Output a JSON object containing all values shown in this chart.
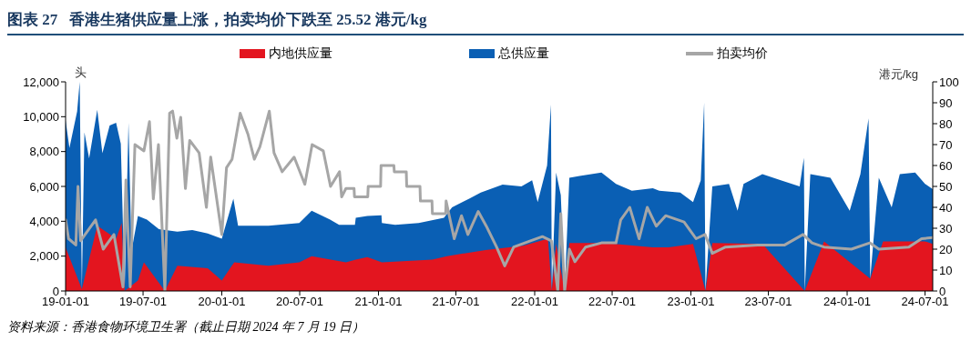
{
  "chart_data": {
    "type": "area",
    "title": "图表 27   香港生猪供应量上涨，拍卖均价下跌至 25.52 港元/kg",
    "ylabel": "头",
    "y2label": "港元/kg",
    "annotations": [
      "资料来源：香港食物环境卫生署（截止日期 2024 年 7 月 19 日）"
    ],
    "legend": "top",
    "xlim": [
      "2019-01-01",
      "2024-07-19"
    ],
    "xticks": [
      {
        "value": "2019-01-01",
        "label": "19-01-01"
      },
      {
        "value": "2019-07-01",
        "label": "19-07-01"
      },
      {
        "value": "2020-01-01",
        "label": "20-01-01"
      },
      {
        "value": "2020-07-01",
        "label": "20-07-01"
      },
      {
        "value": "2021-01-01",
        "label": "21-01-01"
      },
      {
        "value": "2021-07-01",
        "label": "21-07-01"
      },
      {
        "value": "2022-01-01",
        "label": "22-01-01"
      },
      {
        "value": "2022-07-01",
        "label": "22-07-01"
      },
      {
        "value": "2023-01-01",
        "label": "23-01-01"
      },
      {
        "value": "2023-07-01",
        "label": "23-07-01"
      },
      {
        "value": "2024-01-01",
        "label": "24-01-01"
      },
      {
        "value": "2024-07-01",
        "label": "24-07-01"
      }
    ],
    "ylim": [
      0,
      12000
    ],
    "yticks": [
      0,
      {
        "value": 2000,
        "label": "2,000"
      },
      {
        "value": 4000,
        "label": "4,000"
      },
      {
        "value": 6000,
        "label": "6,000"
      },
      {
        "value": 8000,
        "label": "8,000"
      },
      {
        "value": 10000,
        "label": "10,000"
      },
      {
        "value": 12000,
        "label": "12,000"
      }
    ],
    "y2lim": [
      0,
      100
    ],
    "y2ticks": [
      0,
      10,
      20,
      30,
      40,
      50,
      60,
      70,
      80,
      90,
      100
    ],
    "series": [
      {
        "name": "内地供应量",
        "color": "#e3151f",
        "x": [
          "2019-01-01",
          "2019-02-08",
          "2019-03-16",
          "2019-04-29",
          "2019-05-12",
          "2019-05-19",
          "2019-06-19",
          "2019-07-03",
          "2019-08-21",
          "2019-09-19",
          "2019-11-29",
          "2020-01-01",
          "2020-01-30",
          "2020-04-19",
          "2020-06-30",
          "2020-07-29",
          "2020-10-17",
          "2020-11-09",
          "2020-12-06",
          "2021-01-09",
          "2021-05-07",
          "2021-06-10",
          "2021-09-08",
          "2021-12-05",
          "2022-02-01",
          "2022-02-10",
          "2022-02-20",
          "2022-03-12",
          "2022-03-23",
          "2022-06-13",
          "2022-10-04",
          "2022-11-10",
          "2023-01-06",
          "2023-02-04",
          "2023-02-20",
          "2023-06-17",
          "2023-09-24",
          "2023-11-08",
          "2024-02-24",
          "2024-03-25",
          "2024-07-01",
          "2024-07-19"
        ],
        "values": [
          2500,
          100,
          3750,
          3000,
          3900,
          0,
          600,
          1650,
          0,
          1450,
          1300,
          600,
          1650,
          1450,
          1650,
          2000,
          1650,
          1800,
          1950,
          1650,
          1800,
          2000,
          2350,
          2600,
          3000,
          0,
          2700,
          0,
          2750,
          2750,
          2500,
          2500,
          2700,
          0,
          2750,
          2700,
          0,
          2850,
          700,
          2850,
          2850,
          2700
        ]
      },
      {
        "name": "总供应量",
        "color": "#0a5fb4",
        "x": [
          "2019-01-01",
          "2019-01-10",
          "2019-01-28",
          "2019-02-03",
          "2019-02-08",
          "2019-02-14",
          "2019-02-25",
          "2019-03-16",
          "2019-03-28",
          "2019-04-14",
          "2019-04-29",
          "2019-05-10",
          "2019-05-19",
          "2019-05-28",
          "2019-06-04",
          "2019-06-19",
          "2019-07-10",
          "2019-08-07",
          "2019-09-19",
          "2019-10-24",
          "2019-11-29",
          "2020-01-01",
          "2020-01-28",
          "2020-02-08",
          "2020-04-19",
          "2020-06-30",
          "2020-07-29",
          "2020-09-10",
          "2020-10-01",
          "2020-11-07",
          "2020-11-09",
          "2020-12-06",
          "2021-01-08",
          "2021-01-09",
          "2021-02-09",
          "2021-04-05",
          "2021-06-03",
          "2021-06-22",
          "2021-08-01",
          "2021-08-28",
          "2021-10-18",
          "2021-12-01",
          "2021-12-26",
          "2022-01-08",
          "2022-01-30",
          "2022-02-08",
          "2022-02-10",
          "2022-02-20",
          "2022-03-03",
          "2022-03-12",
          "2022-03-23",
          "2022-04-16",
          "2022-06-06",
          "2022-07-10",
          "2022-08-16",
          "2022-10-04",
          "2022-10-19",
          "2022-12-07",
          "2023-01-06",
          "2023-01-24",
          "2023-02-01",
          "2023-02-04",
          "2023-02-20",
          "2023-03-31",
          "2023-04-20",
          "2023-05-04",
          "2023-06-17",
          "2023-07-30",
          "2023-09-12",
          "2023-09-22",
          "2023-09-24",
          "2023-10-07",
          "2023-11-23",
          "2024-01-07",
          "2024-02-01",
          "2024-02-20",
          "2024-02-24",
          "2024-03-15",
          "2024-04-14",
          "2024-05-03",
          "2024-06-08",
          "2024-07-01",
          "2024-07-19"
        ],
        "values": [
          9800,
          8200,
          10300,
          12000,
          100,
          9100,
          7600,
          10400,
          7900,
          9500,
          9650,
          8450,
          0,
          9650,
          2300,
          4300,
          4100,
          3550,
          3400,
          3500,
          3300,
          3000,
          5300,
          3750,
          3750,
          3900,
          4600,
          4100,
          3800,
          3800,
          4200,
          4300,
          4350,
          3900,
          3800,
          3900,
          4200,
          4800,
          5300,
          5650,
          6100,
          6000,
          6350,
          5100,
          7200,
          10700,
          0,
          6800,
          5500,
          0,
          6500,
          6600,
          6800,
          6150,
          5750,
          5900,
          5750,
          5650,
          5100,
          6350,
          10800,
          0,
          6000,
          6150,
          4600,
          6150,
          6700,
          6350,
          6000,
          7650,
          0,
          6700,
          6500,
          4600,
          6700,
          9900,
          700,
          6500,
          4800,
          6700,
          6800,
          6150,
          5850
        ]
      },
      {
        "name": "拍卖均价",
        "type": "line",
        "axis": "y2",
        "color": "#a6a6a6",
        "x": [
          "2019-01-01",
          "2019-01-08",
          "2019-01-25",
          "2019-01-30",
          "2019-02-05",
          "2019-03-12",
          "2019-03-30",
          "2019-04-24",
          "2019-05-15",
          "2019-05-22",
          "2019-06-01",
          "2019-06-12",
          "2019-07-03",
          "2019-07-16",
          "2019-07-25",
          "2019-08-06",
          "2019-08-21",
          "2019-09-01",
          "2019-09-08",
          "2019-09-18",
          "2019-09-27",
          "2019-10-08",
          "2019-10-18",
          "2019-11-09",
          "2019-11-26",
          "2019-12-06",
          "2020-01-01",
          "2020-01-12",
          "2020-01-25",
          "2020-02-13",
          "2020-03-02",
          "2020-03-17",
          "2020-03-30",
          "2020-04-21",
          "2020-05-02",
          "2020-05-21",
          "2020-06-18",
          "2020-07-13",
          "2020-07-30",
          "2020-08-25",
          "2020-09-11",
          "2020-10-02",
          "2020-10-07",
          "2020-10-17",
          "2020-11-05",
          "2020-11-06",
          "2020-12-07",
          "2020-12-08",
          "2021-01-06",
          "2021-01-07",
          "2021-02-06",
          "2021-02-07",
          "2021-03-07",
          "2021-03-08",
          "2021-04-08",
          "2021-04-09",
          "2021-05-06",
          "2021-05-07",
          "2021-06-07",
          "2021-06-08",
          "2021-06-27",
          "2021-07-14",
          "2021-07-29",
          "2021-08-22",
          "2021-09-10",
          "2021-10-04",
          "2021-10-23",
          "2021-11-13",
          "2021-12-22",
          "2022-01-19",
          "2022-02-09",
          "2022-02-24",
          "2022-03-03",
          "2022-03-12",
          "2022-03-23",
          "2022-04-05",
          "2022-04-30",
          "2022-06-06",
          "2022-07-10",
          "2022-07-21",
          "2022-08-11",
          "2022-09-02",
          "2022-09-21",
          "2022-10-12",
          "2022-11-03",
          "2022-12-16",
          "2023-01-13",
          "2023-02-03",
          "2023-02-20",
          "2023-03-23",
          "2023-06-06",
          "2023-08-08",
          "2023-09-20",
          "2023-10-11",
          "2023-11-08",
          "2024-01-11",
          "2024-02-23",
          "2024-03-15",
          "2024-05-24",
          "2024-06-23",
          "2024-07-19"
        ],
        "values": [
          34,
          25,
          22,
          50,
          24,
          34,
          20,
          27,
          2,
          53,
          2,
          70,
          67,
          81,
          44,
          70,
          0,
          85,
          86,
          73,
          83,
          49,
          72,
          66,
          40,
          64,
          27,
          59,
          63,
          85,
          75,
          63,
          69,
          86,
          66,
          57,
          64,
          51,
          70,
          67,
          50,
          57,
          45,
          49,
          49,
          45,
          45,
          50,
          50,
          60,
          60,
          57,
          57,
          50,
          50,
          43,
          43,
          37,
          37,
          43,
          25,
          36,
          27,
          38,
          31,
          21,
          12,
          21,
          24,
          26,
          24,
          0,
          37,
          0,
          20,
          14,
          21,
          23,
          23,
          34,
          40,
          25,
          40,
          31,
          36,
          33,
          25,
          27,
          18,
          21,
          22,
          22,
          27,
          23,
          21,
          20,
          23,
          20,
          21,
          25,
          25.52
        ]
      }
    ]
  }
}
